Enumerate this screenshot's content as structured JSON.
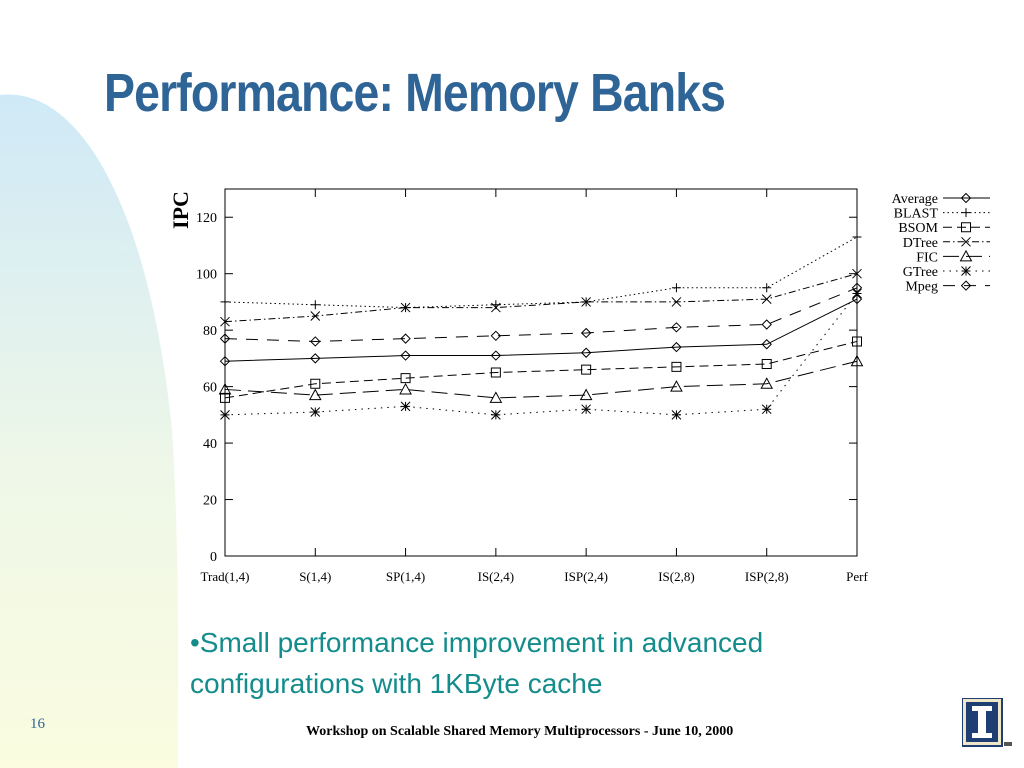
{
  "slide": {
    "title": "Performance: Memory Banks",
    "bullet": "•Small performance improvement in advanced configurations with 1KByte cache",
    "slide_number": "16",
    "footer": "Workshop on Scalable Shared Memory Multiprocessors - June 10, 2000",
    "title_color": "#2e6496",
    "bullet_color": "#148c8c",
    "logo_icon": "university-of-illinois-logo-icon"
  },
  "chart_data": {
    "type": "line",
    "title": "",
    "xlabel": "",
    "ylabel": "IPC",
    "ylim": [
      0,
      130
    ],
    "yticks": [
      0,
      20,
      40,
      60,
      80,
      100,
      120
    ],
    "grid": false,
    "legend_position": "top-right",
    "categories": [
      "Trad(1,4)",
      "S(1,4)",
      "SP(1,4)",
      "IS(2,4)",
      "ISP(2,4)",
      "IS(2,8)",
      "ISP(2,8)",
      "Perf"
    ],
    "series": [
      {
        "name": "Average",
        "marker": "diamond",
        "dash": "solid",
        "values": [
          69,
          70,
          71,
          71,
          72,
          74,
          75,
          91
        ]
      },
      {
        "name": "BLAST",
        "marker": "plus",
        "dash": "dotted",
        "values": [
          90,
          89,
          88,
          89,
          90,
          95,
          95,
          113
        ]
      },
      {
        "name": "BSOM",
        "marker": "square",
        "dash": "dashed",
        "values": [
          56,
          61,
          63,
          65,
          66,
          67,
          68,
          76
        ]
      },
      {
        "name": "DTree",
        "marker": "x",
        "dash": "dash-dot",
        "values": [
          83,
          85,
          88,
          88,
          90,
          90,
          91,
          100
        ]
      },
      {
        "name": "FIC",
        "marker": "triangle",
        "dash": "long-dash",
        "values": [
          59,
          57,
          59,
          56,
          57,
          60,
          61,
          69
        ]
      },
      {
        "name": "GTree",
        "marker": "star",
        "dash": "sparse-dot",
        "values": [
          50,
          51,
          53,
          50,
          52,
          50,
          52,
          93
        ]
      },
      {
        "name": "Mpeg",
        "marker": "diamond",
        "dash": "long-dash-gap",
        "values": [
          77,
          76,
          77,
          78,
          79,
          81,
          82,
          95
        ]
      }
    ]
  }
}
